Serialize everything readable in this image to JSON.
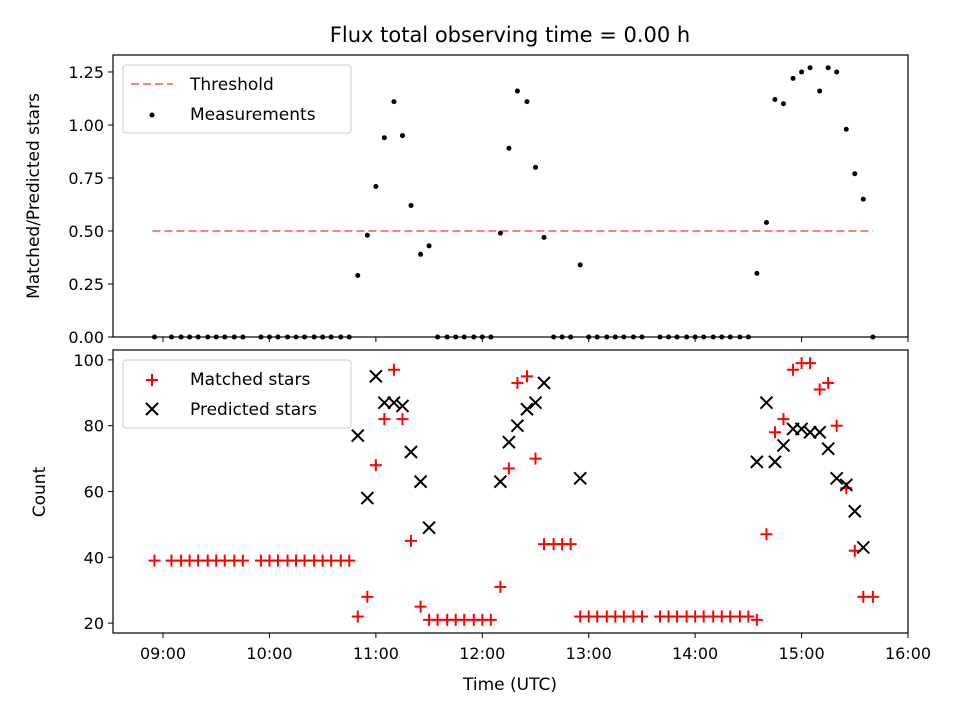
{
  "colors": {
    "threshold": "#ff7f7f",
    "measurement": "#000000",
    "matched": "#ff0000",
    "predicted": "#000000"
  },
  "chart_data": [
    {
      "type": "scatter",
      "title": "Flux total observing time = 0.00 h",
      "xlabel": "",
      "ylabel": "Matched/Predicted stars",
      "xlim": [
        8.53,
        16.0
      ],
      "ylim": [
        0,
        1.33
      ],
      "yticks": [
        0,
        0.25,
        0.5,
        0.75,
        1.0,
        1.25
      ],
      "ytick_labels": [
        "0.00",
        "0.25",
        "0.50",
        "0.75",
        "1.00",
        "1.25"
      ],
      "legend": {
        "position": "top-left",
        "entries": [
          "Threshold",
          "Measurements"
        ]
      },
      "threshold": {
        "name": "Threshold",
        "y": 0.5,
        "x": [
          8.9,
          15.67
        ]
      },
      "series": [
        {
          "name": "Measurements",
          "points": [
            [
              8.92,
              0
            ],
            [
              9.08,
              0
            ],
            [
              9.17,
              0
            ],
            [
              9.25,
              0
            ],
            [
              9.33,
              0
            ],
            [
              9.42,
              0
            ],
            [
              9.5,
              0
            ],
            [
              9.58,
              0
            ],
            [
              9.67,
              0
            ],
            [
              9.75,
              0
            ],
            [
              9.92,
              0
            ],
            [
              10.0,
              0
            ],
            [
              10.08,
              0
            ],
            [
              10.17,
              0
            ],
            [
              10.25,
              0
            ],
            [
              10.33,
              0
            ],
            [
              10.42,
              0
            ],
            [
              10.5,
              0
            ],
            [
              10.58,
              0
            ],
            [
              10.67,
              0
            ],
            [
              10.75,
              0
            ],
            [
              10.83,
              0.29
            ],
            [
              10.92,
              0.48
            ],
            [
              11.0,
              0.71
            ],
            [
              11.08,
              0.94
            ],
            [
              11.17,
              1.11
            ],
            [
              11.25,
              0.95
            ],
            [
              11.33,
              0.62
            ],
            [
              11.42,
              0.39
            ],
            [
              11.5,
              0.43
            ],
            [
              11.58,
              0
            ],
            [
              11.67,
              0
            ],
            [
              11.75,
              0
            ],
            [
              11.83,
              0
            ],
            [
              11.92,
              0
            ],
            [
              12.0,
              0
            ],
            [
              12.08,
              0
            ],
            [
              12.17,
              0.49
            ],
            [
              12.25,
              0.89
            ],
            [
              12.33,
              1.16
            ],
            [
              12.42,
              1.11
            ],
            [
              12.5,
              0.8
            ],
            [
              12.58,
              0.47
            ],
            [
              12.67,
              0
            ],
            [
              12.75,
              0
            ],
            [
              12.83,
              0
            ],
            [
              12.92,
              0.34
            ],
            [
              13.0,
              0
            ],
            [
              13.08,
              0
            ],
            [
              13.17,
              0
            ],
            [
              13.25,
              0
            ],
            [
              13.33,
              0
            ],
            [
              13.42,
              0
            ],
            [
              13.5,
              0
            ],
            [
              13.67,
              0
            ],
            [
              13.75,
              0
            ],
            [
              13.83,
              0
            ],
            [
              13.92,
              0
            ],
            [
              14.0,
              0
            ],
            [
              14.08,
              0
            ],
            [
              14.17,
              0
            ],
            [
              14.25,
              0
            ],
            [
              14.33,
              0
            ],
            [
              14.42,
              0
            ],
            [
              14.5,
              0
            ],
            [
              14.58,
              0.3
            ],
            [
              14.67,
              0.54
            ],
            [
              14.75,
              1.12
            ],
            [
              14.83,
              1.1
            ],
            [
              14.92,
              1.22
            ],
            [
              15.0,
              1.25
            ],
            [
              15.08,
              1.27
            ],
            [
              15.17,
              1.16
            ],
            [
              15.25,
              1.27
            ],
            [
              15.33,
              1.25
            ],
            [
              15.42,
              0.98
            ],
            [
              15.5,
              0.77
            ],
            [
              15.58,
              0.65
            ],
            [
              15.67,
              0
            ]
          ]
        }
      ]
    },
    {
      "type": "scatter",
      "title": "",
      "xlabel": "Time (UTC)",
      "ylabel": "Count",
      "xlim": [
        8.53,
        16.0
      ],
      "ylim": [
        17,
        103
      ],
      "yticks": [
        20,
        40,
        60,
        80,
        100
      ],
      "ytick_labels": [
        "20",
        "40",
        "60",
        "80",
        "100"
      ],
      "xticks": [
        9,
        10,
        11,
        12,
        13,
        14,
        15,
        16
      ],
      "xtick_labels": [
        "09:00",
        "10:00",
        "11:00",
        "12:00",
        "13:00",
        "14:00",
        "15:00",
        "16:00"
      ],
      "legend": {
        "position": "top-left",
        "entries": [
          "Matched stars",
          "Predicted stars"
        ]
      },
      "series": [
        {
          "name": "Matched stars",
          "marker": "plus",
          "points": [
            [
              8.92,
              39
            ],
            [
              9.08,
              39
            ],
            [
              9.17,
              39
            ],
            [
              9.25,
              39
            ],
            [
              9.33,
              39
            ],
            [
              9.42,
              39
            ],
            [
              9.5,
              39
            ],
            [
              9.58,
              39
            ],
            [
              9.67,
              39
            ],
            [
              9.75,
              39
            ],
            [
              9.92,
              39
            ],
            [
              10.0,
              39
            ],
            [
              10.08,
              39
            ],
            [
              10.17,
              39
            ],
            [
              10.25,
              39
            ],
            [
              10.33,
              39
            ],
            [
              10.42,
              39
            ],
            [
              10.5,
              39
            ],
            [
              10.58,
              39
            ],
            [
              10.67,
              39
            ],
            [
              10.75,
              39
            ],
            [
              10.83,
              22
            ],
            [
              10.92,
              28
            ],
            [
              11.0,
              68
            ],
            [
              11.08,
              82
            ],
            [
              11.17,
              97
            ],
            [
              11.25,
              82
            ],
            [
              11.33,
              45
            ],
            [
              11.42,
              25
            ],
            [
              11.5,
              21
            ],
            [
              11.58,
              21
            ],
            [
              11.67,
              21
            ],
            [
              11.75,
              21
            ],
            [
              11.83,
              21
            ],
            [
              11.92,
              21
            ],
            [
              12.0,
              21
            ],
            [
              12.08,
              21
            ],
            [
              12.17,
              31
            ],
            [
              12.25,
              67
            ],
            [
              12.33,
              93
            ],
            [
              12.42,
              95
            ],
            [
              12.5,
              70
            ],
            [
              12.58,
              44
            ],
            [
              12.67,
              44
            ],
            [
              12.75,
              44
            ],
            [
              12.83,
              44
            ],
            [
              12.92,
              22
            ],
            [
              13.0,
              22
            ],
            [
              13.08,
              22
            ],
            [
              13.17,
              22
            ],
            [
              13.25,
              22
            ],
            [
              13.33,
              22
            ],
            [
              13.42,
              22
            ],
            [
              13.5,
              22
            ],
            [
              13.67,
              22
            ],
            [
              13.75,
              22
            ],
            [
              13.83,
              22
            ],
            [
              13.92,
              22
            ],
            [
              14.0,
              22
            ],
            [
              14.08,
              22
            ],
            [
              14.17,
              22
            ],
            [
              14.25,
              22
            ],
            [
              14.33,
              22
            ],
            [
              14.42,
              22
            ],
            [
              14.5,
              22
            ],
            [
              14.58,
              21
            ],
            [
              14.67,
              47
            ],
            [
              14.75,
              78
            ],
            [
              14.83,
              82
            ],
            [
              14.92,
              97
            ],
            [
              15.0,
              99
            ],
            [
              15.08,
              99
            ],
            [
              15.17,
              91
            ],
            [
              15.25,
              93
            ],
            [
              15.33,
              80
            ],
            [
              15.42,
              61
            ],
            [
              15.5,
              42
            ],
            [
              15.58,
              28
            ],
            [
              15.67,
              28
            ]
          ]
        },
        {
          "name": "Predicted stars",
          "marker": "x",
          "points": [
            [
              10.83,
              77
            ],
            [
              10.92,
              58
            ],
            [
              11.0,
              95
            ],
            [
              11.08,
              87
            ],
            [
              11.17,
              87
            ],
            [
              11.25,
              86
            ],
            [
              11.33,
              72
            ],
            [
              11.42,
              63
            ],
            [
              11.5,
              49
            ],
            [
              12.17,
              63
            ],
            [
              12.25,
              75
            ],
            [
              12.33,
              80
            ],
            [
              12.42,
              85
            ],
            [
              12.5,
              87
            ],
            [
              12.58,
              93
            ],
            [
              12.92,
              64
            ],
            [
              14.58,
              69
            ],
            [
              14.67,
              87
            ],
            [
              14.75,
              69
            ],
            [
              14.83,
              74
            ],
            [
              14.92,
              79
            ],
            [
              15.0,
              79
            ],
            [
              15.08,
              78
            ],
            [
              15.17,
              78
            ],
            [
              15.25,
              73
            ],
            [
              15.33,
              64
            ],
            [
              15.42,
              62
            ],
            [
              15.5,
              54
            ],
            [
              15.58,
              43
            ]
          ]
        }
      ]
    }
  ]
}
